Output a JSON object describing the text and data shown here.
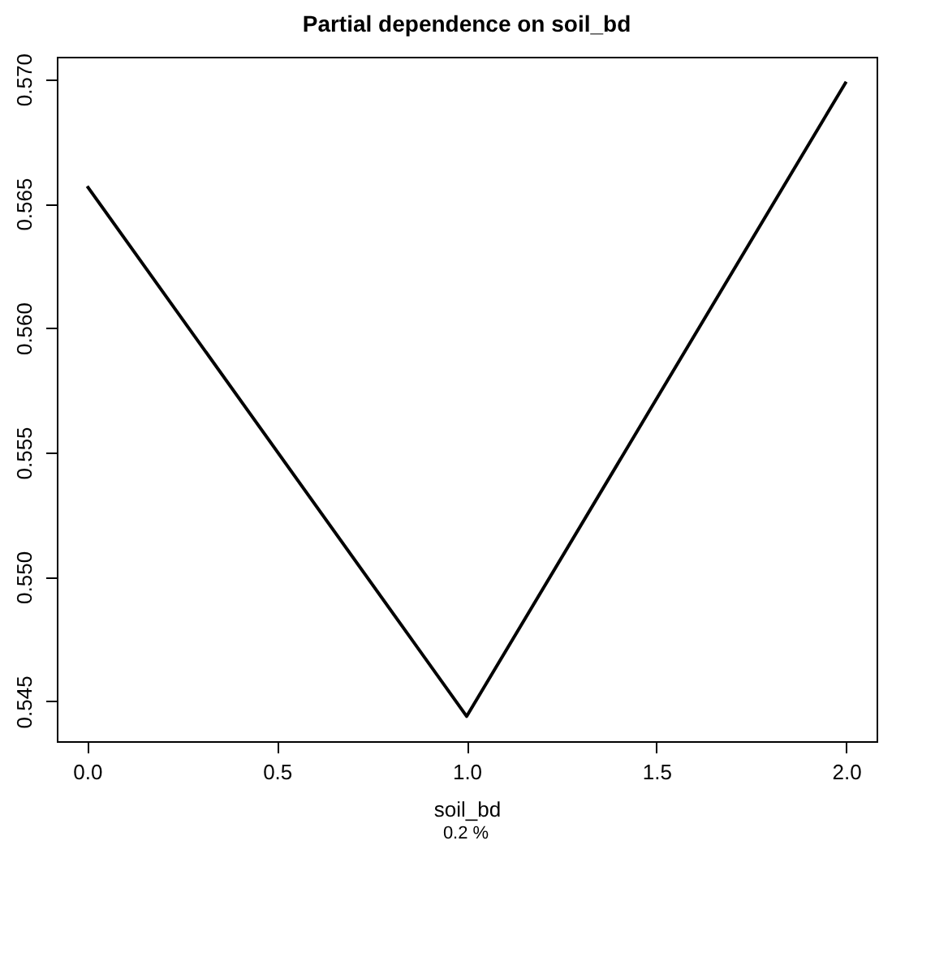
{
  "chart_data": {
    "type": "line",
    "title": "Partial dependence on soil_bd",
    "xlabel": "soil_bd",
    "annotations": [
      "0.2 %"
    ],
    "x": [
      0,
      1,
      2
    ],
    "series": [
      {
        "color": "#000000",
        "values": [
          0.5657,
          0.5444,
          0.5699
        ]
      }
    ],
    "xlim": [
      -0.08,
      2.08
    ],
    "ylim": [
      0.5434,
      0.5709
    ],
    "xticks": [
      {
        "value": 0,
        "label": "0.0"
      },
      {
        "value": 0.5,
        "label": "0.5"
      },
      {
        "value": 1,
        "label": "1.0"
      },
      {
        "value": 1.5,
        "label": "1.5"
      },
      {
        "value": 2,
        "label": "2.0"
      }
    ],
    "yticks": [
      {
        "value": 0.545,
        "label": "0.545"
      },
      {
        "value": 0.55,
        "label": "0.550"
      },
      {
        "value": 0.555,
        "label": "0.555"
      },
      {
        "value": 0.56,
        "label": "0.560"
      },
      {
        "value": 0.565,
        "label": "0.565"
      },
      {
        "value": 0.57,
        "label": "0.570"
      }
    ],
    "grid": false,
    "marker": "none",
    "line_style": "solid"
  }
}
